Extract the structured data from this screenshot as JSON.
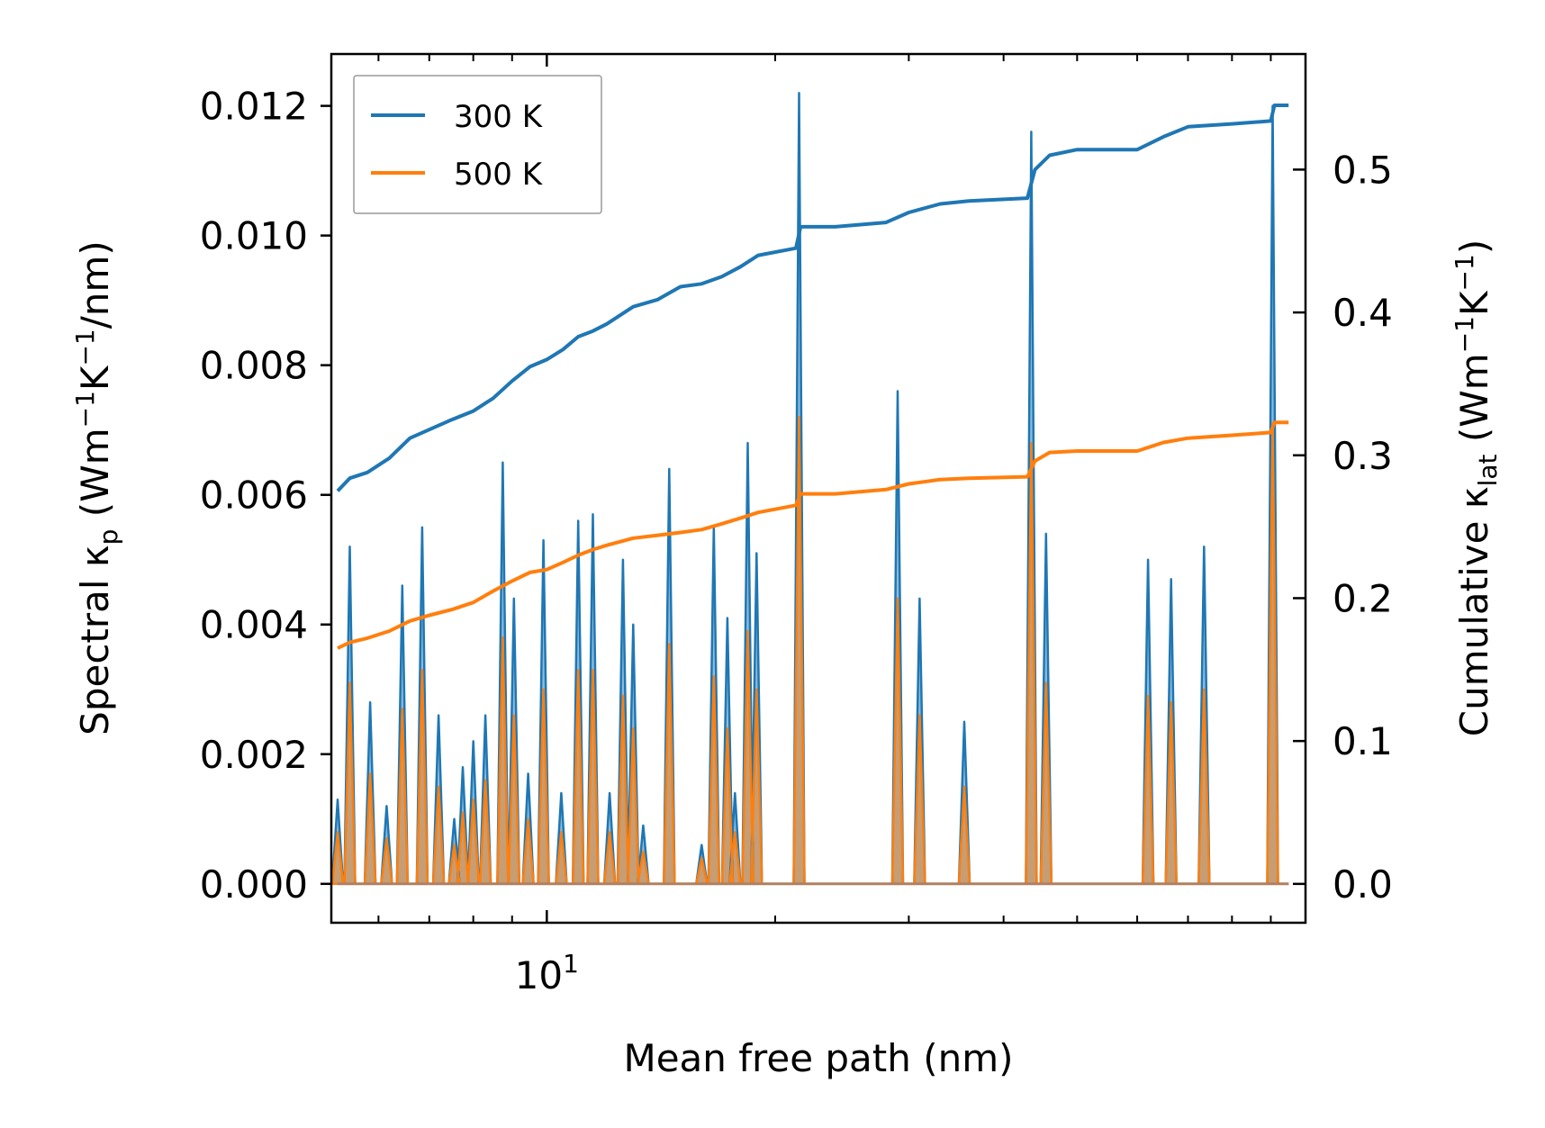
{
  "chart_data": {
    "type": "line",
    "xscale": "log",
    "xlabel": "Mean free path (nm)",
    "ylabel_left_parts": [
      "Spectral κ",
      "p",
      " (Wm",
      "−1",
      "K",
      "−1",
      "/nm)"
    ],
    "ylabel_right_parts": [
      "Cumulative κ",
      "lat",
      " (Wm",
      "−1",
      "K",
      "−1",
      ")"
    ],
    "xlim": [
      5.2,
      100
    ],
    "ylim_left": [
      -0.0006,
      0.0128
    ],
    "ylim_right": [
      -0.0272,
      0.5809
    ],
    "x_ticks": [
      {
        "value": 10,
        "base": "10",
        "exp": "1"
      }
    ],
    "y_left_ticks": [
      0.0,
      0.002,
      0.004,
      0.006,
      0.008,
      0.01,
      0.012
    ],
    "y_left_tick_labels": [
      "0.000",
      "0.002",
      "0.004",
      "0.006",
      "0.008",
      "0.010",
      "0.012"
    ],
    "y_right_ticks": [
      0.0,
      0.1,
      0.2,
      0.3,
      0.4,
      0.5
    ],
    "y_right_tick_labels": [
      "0.0",
      "0.1",
      "0.2",
      "0.3",
      "0.4",
      "0.5"
    ],
    "legend": {
      "position": "top-left",
      "entries": [
        "300 K",
        "500 K"
      ]
    },
    "colors": {
      "300 K": "#1f77b4",
      "500 K": "#ff7f0e",
      "fill_300": "#1f77b4",
      "fill_500": "#ff7f0e"
    },
    "spectral_peaks": [
      {
        "x": 5.3,
        "s300": 0.0013,
        "s500": 0.0008
      },
      {
        "x": 5.5,
        "s300": 0.0052,
        "s500": 0.0031
      },
      {
        "x": 5.85,
        "s300": 0.0028,
        "s500": 0.0017
      },
      {
        "x": 6.15,
        "s300": 0.0012,
        "s500": 0.0007
      },
      {
        "x": 6.45,
        "s300": 0.0046,
        "s500": 0.0027
      },
      {
        "x": 6.85,
        "s300": 0.0055,
        "s500": 0.0033
      },
      {
        "x": 7.2,
        "s300": 0.0026,
        "s500": 0.0015
      },
      {
        "x": 7.55,
        "s300": 0.001,
        "s500": 0.0006
      },
      {
        "x": 7.75,
        "s300": 0.0018,
        "s500": 0.0011
      },
      {
        "x": 8.0,
        "s300": 0.0022,
        "s500": 0.0013
      },
      {
        "x": 8.3,
        "s300": 0.0026,
        "s500": 0.0016
      },
      {
        "x": 8.75,
        "s300": 0.0065,
        "s500": 0.0038
      },
      {
        "x": 9.05,
        "s300": 0.0044,
        "s500": 0.0026
      },
      {
        "x": 9.45,
        "s300": 0.0017,
        "s500": 0.001
      },
      {
        "x": 9.9,
        "s300": 0.0053,
        "s500": 0.003
      },
      {
        "x": 10.45,
        "s300": 0.0014,
        "s500": 0.0008
      },
      {
        "x": 11.0,
        "s300": 0.0056,
        "s500": 0.0033
      },
      {
        "x": 11.5,
        "s300": 0.0057,
        "s500": 0.0033
      },
      {
        "x": 12.1,
        "s300": 0.0014,
        "s500": 0.0008
      },
      {
        "x": 12.6,
        "s300": 0.005,
        "s500": 0.0029
      },
      {
        "x": 13.0,
        "s300": 0.004,
        "s500": 0.0024
      },
      {
        "x": 13.4,
        "s300": 0.0009,
        "s500": 0.0005
      },
      {
        "x": 14.5,
        "s300": 0.0064,
        "s500": 0.0037
      },
      {
        "x": 16.0,
        "s300": 0.0006,
        "s500": 0.0004
      },
      {
        "x": 16.6,
        "s300": 0.0055,
        "s500": 0.0032
      },
      {
        "x": 17.3,
        "s300": 0.0041,
        "s500": 0.0024
      },
      {
        "x": 17.7,
        "s300": 0.0014,
        "s500": 0.0008
      },
      {
        "x": 18.4,
        "s300": 0.0068,
        "s500": 0.0039
      },
      {
        "x": 18.9,
        "s300": 0.0051,
        "s500": 0.003
      },
      {
        "x": 21.5,
        "s300": 0.0122,
        "s500": 0.0072
      },
      {
        "x": 29.0,
        "s300": 0.0076,
        "s500": 0.0044
      },
      {
        "x": 31.0,
        "s300": 0.0044,
        "s500": 0.0026
      },
      {
        "x": 35.5,
        "s300": 0.0025,
        "s500": 0.0015
      },
      {
        "x": 43.5,
        "s300": 0.0116,
        "s500": 0.0068
      },
      {
        "x": 45.5,
        "s300": 0.0054,
        "s500": 0.0031
      },
      {
        "x": 62.0,
        "s300": 0.005,
        "s500": 0.0029
      },
      {
        "x": 66.5,
        "s300": 0.0047,
        "s500": 0.0028
      },
      {
        "x": 73.5,
        "s300": 0.0052,
        "s500": 0.003
      },
      {
        "x": 90.5,
        "s300": 0.012,
        "s500": 0.0071
      }
    ],
    "cumulative_300K": {
      "x": [
        5.3,
        5.5,
        5.8,
        6.2,
        6.6,
        7.0,
        7.5,
        8.0,
        8.5,
        9.0,
        9.5,
        10.0,
        10.5,
        11.0,
        11.5,
        12.0,
        13.0,
        14.0,
        15.0,
        16.0,
        17.0,
        18.0,
        19.0,
        21.3,
        21.6,
        24.0,
        28.0,
        30.0,
        33.0,
        36.0,
        43.0,
        44.0,
        46.0,
        50.0,
        60.0,
        65.0,
        70.0,
        80.0,
        90.0,
        91.0,
        95.0
      ],
      "y": [
        0.275,
        0.284,
        0.288,
        0.298,
        0.312,
        0.318,
        0.325,
        0.331,
        0.34,
        0.352,
        0.362,
        0.367,
        0.374,
        0.383,
        0.387,
        0.392,
        0.404,
        0.409,
        0.418,
        0.42,
        0.425,
        0.432,
        0.44,
        0.445,
        0.46,
        0.46,
        0.463,
        0.47,
        0.476,
        0.478,
        0.48,
        0.5,
        0.51,
        0.514,
        0.514,
        0.523,
        0.53,
        0.532,
        0.534,
        0.545,
        0.545
      ]
    },
    "cumulative_500K": {
      "x": [
        5.3,
        5.5,
        5.8,
        6.2,
        6.6,
        7.0,
        7.5,
        8.0,
        8.5,
        9.0,
        9.5,
        10.0,
        10.5,
        11.0,
        11.5,
        12.0,
        13.0,
        14.0,
        15.0,
        16.0,
        17.0,
        18.0,
        19.0,
        21.3,
        21.6,
        24.0,
        28.0,
        30.0,
        33.0,
        36.0,
        43.0,
        44.0,
        46.0,
        50.0,
        60.0,
        65.0,
        70.0,
        80.0,
        90.0,
        91.0,
        95.0
      ],
      "y": [
        0.165,
        0.169,
        0.172,
        0.177,
        0.184,
        0.188,
        0.192,
        0.197,
        0.205,
        0.212,
        0.218,
        0.22,
        0.225,
        0.23,
        0.234,
        0.237,
        0.242,
        0.244,
        0.246,
        0.248,
        0.252,
        0.256,
        0.26,
        0.265,
        0.273,
        0.273,
        0.276,
        0.28,
        0.283,
        0.284,
        0.285,
        0.296,
        0.302,
        0.303,
        0.303,
        0.309,
        0.312,
        0.314,
        0.316,
        0.323,
        0.323
      ]
    }
  }
}
